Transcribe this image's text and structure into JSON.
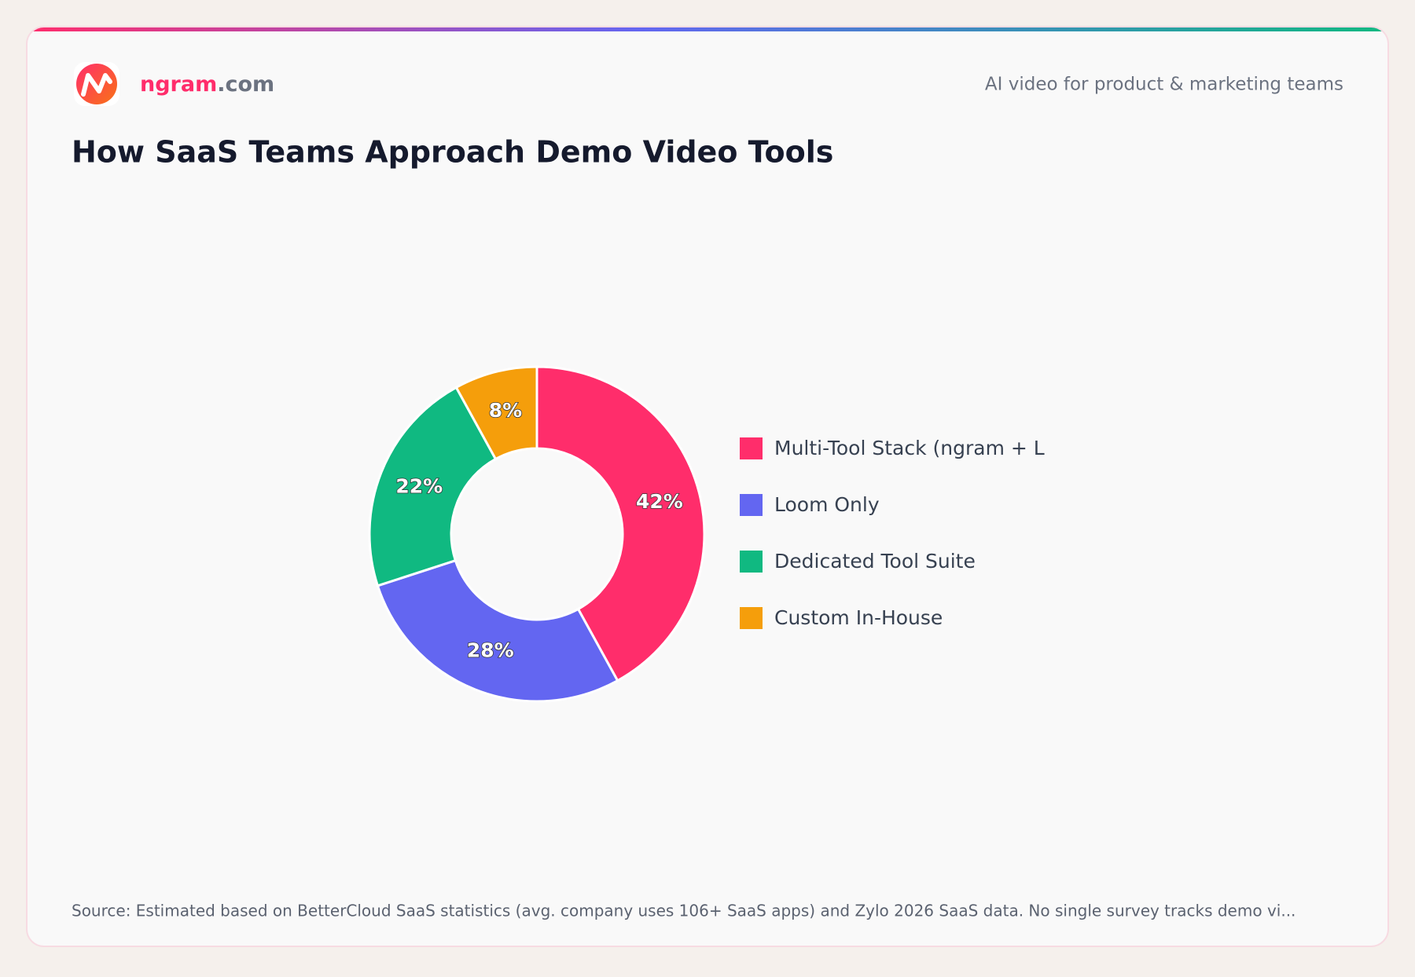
{
  "header": {
    "brand": "ngram",
    "brand_suffix": ".com",
    "tagline": "AI video for product & marketing teams"
  },
  "chart_data": {
    "type": "pie",
    "title": "How SaaS Teams Approach Demo Video Tools",
    "categories": [
      "Multi-Tool Stack (ngram + L",
      "Loom Only",
      "Dedicated Tool Suite",
      "Custom In-House"
    ],
    "values": [
      42,
      28,
      22,
      8
    ],
    "value_labels": [
      "42%",
      "28%",
      "22%",
      "8%"
    ],
    "colors": [
      "#ff2d6b",
      "#6366f1",
      "#10b981",
      "#f59e0b"
    ],
    "legend": "right"
  },
  "footer": {
    "source": "Source: Estimated based on BetterCloud SaaS statistics (avg. company uses 106+ SaaS apps) and Zylo 2026 SaaS data. No single survey tracks demo vi..."
  }
}
